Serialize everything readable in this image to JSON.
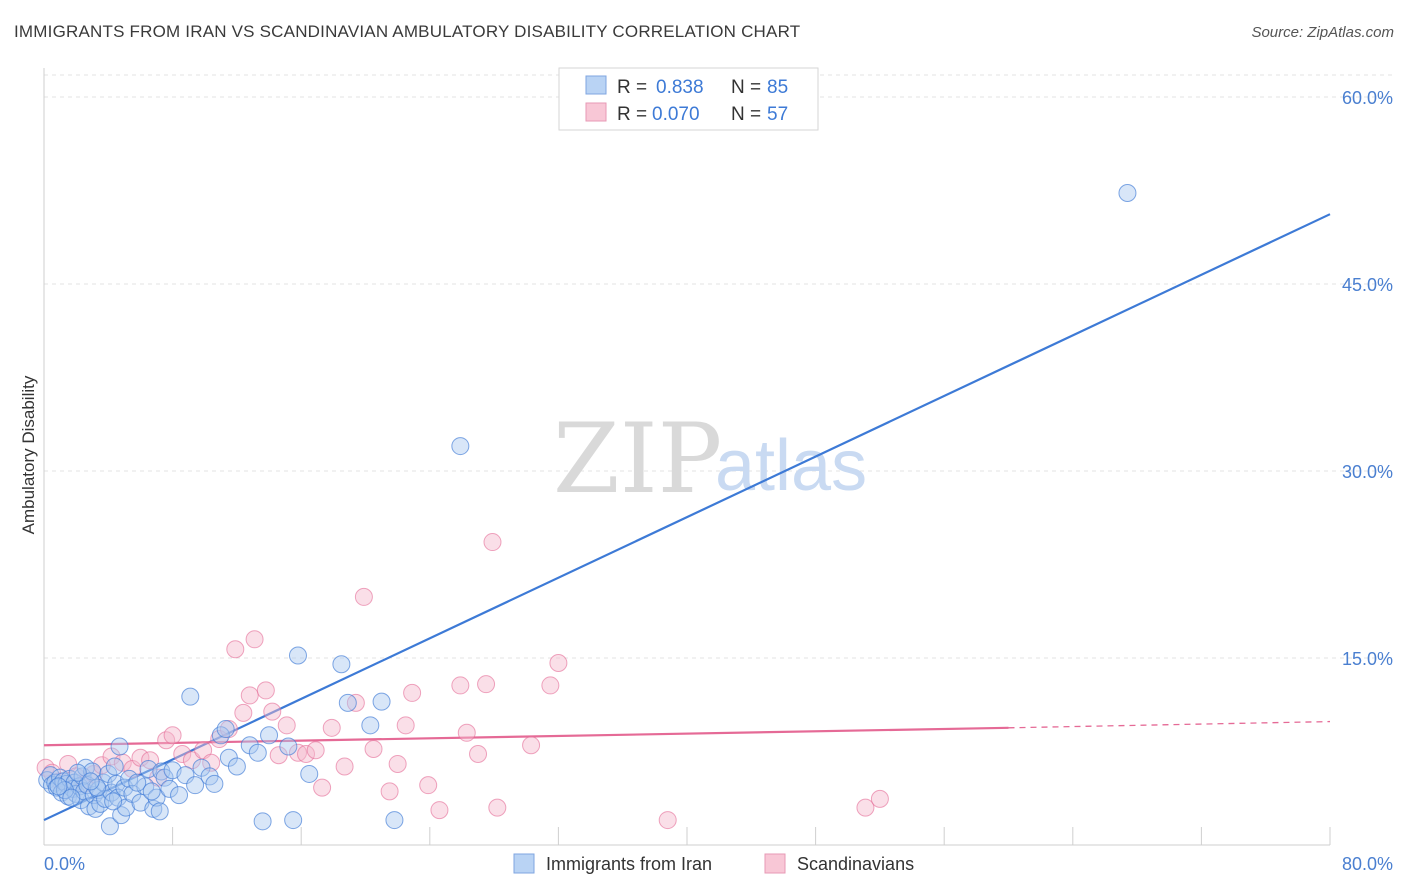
{
  "title": "IMMIGRANTS FROM IRAN VS SCANDINAVIAN AMBULATORY DISABILITY CORRELATION CHART",
  "source": "Source: ZipAtlas.com",
  "watermark": {
    "zip": "ZIP",
    "atlas": "atlas"
  },
  "colors": {
    "blue": "#3d7ad6",
    "blue_fill": "#a9c7f0",
    "pink": "#e56a96",
    "pink_fill": "#f4b8cc",
    "grid": "#e3e3e3",
    "tick_label": "#4a7fd0"
  },
  "legend": {
    "rows": [
      {
        "r_label": "R =",
        "r_value": "0.838",
        "n_label": "N =",
        "n_value": "85"
      },
      {
        "r_label": "R =",
        "r_value": "0.070",
        "n_label": "N =",
        "n_value": "57"
      }
    ]
  },
  "chart_data": {
    "type": "scatter",
    "title": "IMMIGRANTS FROM IRAN VS SCANDINAVIAN AMBULATORY DISABILITY CORRELATION CHART",
    "xlabel": "",
    "ylabel": "Ambulatory Disability",
    "xlim": [
      0,
      80
    ],
    "ylim": [
      0,
      62
    ],
    "x_tick_labels": [
      "0.0%",
      "80.0%"
    ],
    "y_ticks": [
      15,
      30,
      45,
      60
    ],
    "y_tick_labels": [
      "15.0%",
      "30.0%",
      "45.0%",
      "60.0%"
    ],
    "legend_position": "top-center",
    "series": [
      {
        "name": "Immigrants from Iran",
        "r": 0.838,
        "n": 85,
        "trend": {
          "x0": 0,
          "y0": 2.0,
          "x1": 80,
          "y1": 50.6
        },
        "points": [
          [
            0.2,
            5.2
          ],
          [
            0.4,
            5.6
          ],
          [
            0.5,
            4.8
          ],
          [
            0.7,
            5.0
          ],
          [
            0.8,
            4.6
          ],
          [
            1.0,
            5.4
          ],
          [
            1.1,
            4.2
          ],
          [
            1.2,
            5.1
          ],
          [
            1.4,
            4.9
          ],
          [
            1.5,
            3.9
          ],
          [
            1.6,
            5.3
          ],
          [
            1.8,
            4.5
          ],
          [
            1.9,
            5.0
          ],
          [
            2.0,
            4.1
          ],
          [
            2.2,
            4.7
          ],
          [
            2.3,
            3.6
          ],
          [
            2.4,
            5.5
          ],
          [
            2.5,
            4.3
          ],
          [
            2.6,
            6.2
          ],
          [
            2.7,
            4.8
          ],
          [
            2.8,
            3.1
          ],
          [
            3.0,
            5.9
          ],
          [
            3.1,
            4.0
          ],
          [
            3.2,
            2.9
          ],
          [
            3.4,
            4.4
          ],
          [
            3.5,
            3.3
          ],
          [
            3.7,
            5.0
          ],
          [
            3.8,
            3.7
          ],
          [
            4.0,
            5.7
          ],
          [
            4.1,
            1.5
          ],
          [
            4.2,
            4.2
          ],
          [
            4.4,
            6.3
          ],
          [
            4.5,
            4.9
          ],
          [
            4.6,
            3.8
          ],
          [
            4.7,
            7.9
          ],
          [
            4.8,
            2.4
          ],
          [
            5.0,
            4.6
          ],
          [
            5.1,
            3.0
          ],
          [
            5.3,
            5.3
          ],
          [
            5.5,
            4.1
          ],
          [
            6.0,
            3.4
          ],
          [
            6.3,
            4.7
          ],
          [
            6.5,
            6.1
          ],
          [
            6.8,
            2.9
          ],
          [
            7.0,
            3.8
          ],
          [
            7.3,
            5.9
          ],
          [
            7.5,
            5.4
          ],
          [
            7.8,
            4.5
          ],
          [
            8.0,
            6.0
          ],
          [
            8.4,
            4.0
          ],
          [
            8.8,
            5.6
          ],
          [
            9.1,
            11.9
          ],
          [
            9.4,
            4.8
          ],
          [
            9.8,
            6.2
          ],
          [
            10.3,
            5.5
          ],
          [
            10.6,
            4.9
          ],
          [
            11.0,
            8.8
          ],
          [
            11.3,
            9.3
          ],
          [
            11.5,
            7.0
          ],
          [
            12.0,
            6.3
          ],
          [
            12.8,
            8.0
          ],
          [
            13.3,
            7.4
          ],
          [
            13.6,
            1.9
          ],
          [
            14.0,
            8.8
          ],
          [
            15.2,
            7.9
          ],
          [
            15.5,
            2.0
          ],
          [
            15.8,
            15.2
          ],
          [
            16.5,
            5.7
          ],
          [
            18.5,
            14.5
          ],
          [
            18.9,
            11.4
          ],
          [
            20.3,
            9.6
          ],
          [
            21.0,
            11.5
          ],
          [
            21.8,
            2.0
          ],
          [
            25.9,
            32.0
          ],
          [
            67.4,
            52.3
          ],
          [
            1.3,
            4.4
          ],
          [
            2.1,
            5.8
          ],
          [
            3.3,
            4.6
          ],
          [
            5.8,
            5.0
          ],
          [
            6.7,
            4.3
          ],
          [
            0.9,
            4.7
          ],
          [
            1.7,
            3.8
          ],
          [
            2.9,
            5.1
          ],
          [
            4.3,
            3.5
          ],
          [
            7.2,
            2.7
          ]
        ]
      },
      {
        "name": "Scandinavians",
        "r": 0.07,
        "n": 57,
        "trend": {
          "x0": 0,
          "y0": 8.0,
          "x1": 60,
          "y1": 9.4,
          "dash_to_x": 80,
          "dash_to_y": 9.9
        },
        "points": [
          [
            0.1,
            6.2
          ],
          [
            0.5,
            5.8
          ],
          [
            1.0,
            5.1
          ],
          [
            1.5,
            6.5
          ],
          [
            2.0,
            5.5
          ],
          [
            2.5,
            4.9
          ],
          [
            3.1,
            5.7
          ],
          [
            3.6,
            6.4
          ],
          [
            4.2,
            7.1
          ],
          [
            4.9,
            6.6
          ],
          [
            5.5,
            6.1
          ],
          [
            6.0,
            7.0
          ],
          [
            6.6,
            6.8
          ],
          [
            7.1,
            5.4
          ],
          [
            7.6,
            8.4
          ],
          [
            8.0,
            8.8
          ],
          [
            8.6,
            7.3
          ],
          [
            9.2,
            6.8
          ],
          [
            9.9,
            7.6
          ],
          [
            10.4,
            6.6
          ],
          [
            10.9,
            8.5
          ],
          [
            11.5,
            9.3
          ],
          [
            11.9,
            15.7
          ],
          [
            12.4,
            10.6
          ],
          [
            12.8,
            12.0
          ],
          [
            13.1,
            16.5
          ],
          [
            13.8,
            12.4
          ],
          [
            14.2,
            10.7
          ],
          [
            14.6,
            7.2
          ],
          [
            15.1,
            9.6
          ],
          [
            15.8,
            7.4
          ],
          [
            16.3,
            7.3
          ],
          [
            16.9,
            7.6
          ],
          [
            17.3,
            4.6
          ],
          [
            17.9,
            9.4
          ],
          [
            18.7,
            6.3
          ],
          [
            19.4,
            11.4
          ],
          [
            19.9,
            19.9
          ],
          [
            20.5,
            7.7
          ],
          [
            21.5,
            4.3
          ],
          [
            22.0,
            6.5
          ],
          [
            22.5,
            9.6
          ],
          [
            22.9,
            12.2
          ],
          [
            23.9,
            4.8
          ],
          [
            24.6,
            2.8
          ],
          [
            25.9,
            12.8
          ],
          [
            26.3,
            9.0
          ],
          [
            27.0,
            7.3
          ],
          [
            27.5,
            12.9
          ],
          [
            27.9,
            24.3
          ],
          [
            28.2,
            3.0
          ],
          [
            30.3,
            8.0
          ],
          [
            31.5,
            12.8
          ],
          [
            32.0,
            14.6
          ],
          [
            38.8,
            2.0
          ],
          [
            51.1,
            3.0
          ],
          [
            52.0,
            3.7
          ]
        ]
      }
    ]
  },
  "bottom_legend": [
    {
      "label": "Immigrants from Iran"
    },
    {
      "label": "Scandinavians"
    }
  ]
}
